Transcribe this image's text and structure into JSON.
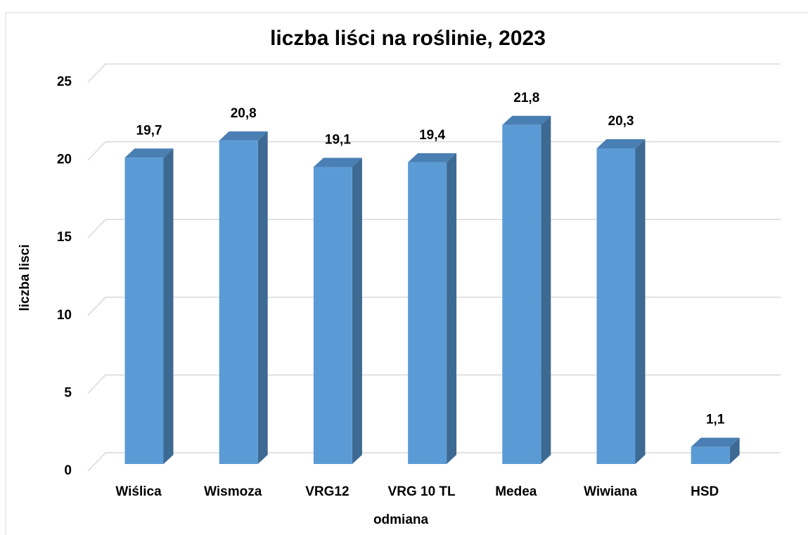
{
  "chart_data": {
    "type": "bar3d",
    "title": "liczba liści na roślinie, 2023",
    "x_label": "odmiana",
    "y_label": "liczba lisci",
    "categories": [
      "Wiślica",
      "Wismoza",
      "VRG12",
      "VRG 10 TL",
      "Medea",
      "Wiwiana",
      "HSD"
    ],
    "values": [
      19.7,
      20.8,
      19.1,
      19.4,
      21.8,
      20.3,
      1.1
    ],
    "value_labels": [
      "19,7",
      "20,8",
      "19,1",
      "19,4",
      "21,8",
      "20,3",
      "1,1"
    ],
    "color": "#5b9bd5",
    "ylim": [
      0,
      25
    ],
    "yticks": [
      0,
      5,
      10,
      15,
      20,
      25
    ],
    "grid": true
  }
}
